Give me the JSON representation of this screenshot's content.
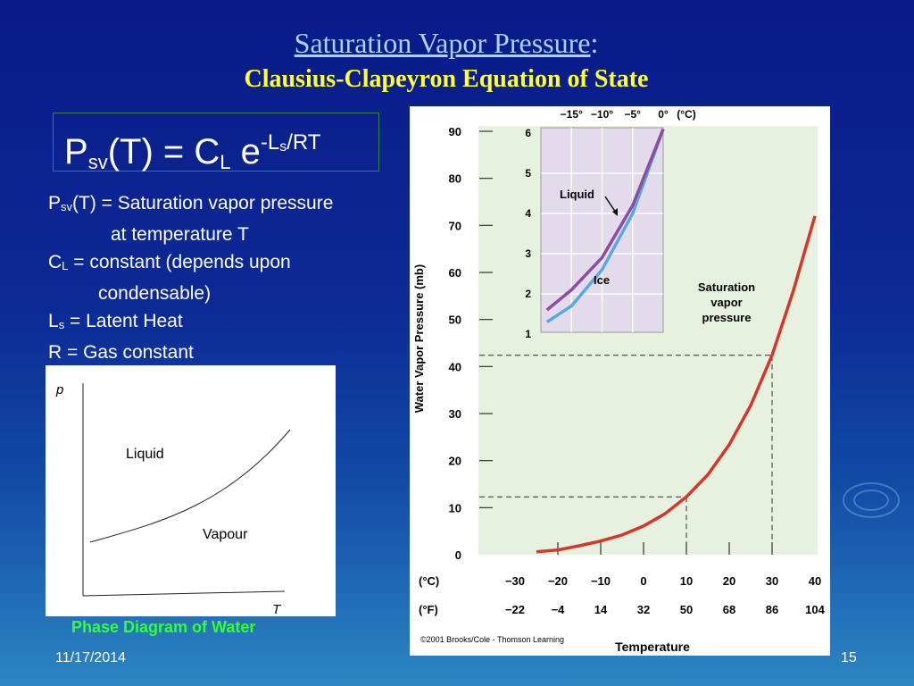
{
  "slide": {
    "title": "Saturation Vapor Pressure",
    "title_colon": ":",
    "subtitle": "Clausius-Clapeyron Equation of State",
    "date": "11/17/2014",
    "page": "15"
  },
  "equation": {
    "p": "P",
    "sv": "sv",
    "t": "(T) = C",
    "l": "L",
    "e": " e",
    "exp1": "-L",
    "exp2": "s",
    "exp3": "/RT"
  },
  "definitions": {
    "d1_p": "P",
    "d1_sub": "sv",
    "d1_text": "(T) = Saturation vapor pressure",
    "d1_cont": "at temperature T",
    "d2_c": "C",
    "d2_sub": "L",
    "d2_text": " = constant (depends upon",
    "d2_cont": "condensable)",
    "d3_l": "L",
    "d3_sub": "s",
    "d3_text": " = Latent Heat",
    "d4": "R = Gas constant"
  },
  "phase_diagram": {
    "caption": "Phase Diagram of Water",
    "y_label": "p",
    "x_label": "T",
    "liquid_label": "Liquid",
    "vapour_label": "Vapour"
  },
  "chart_data": {
    "type": "line",
    "ylabel": "Water Vapor Pressure (mb)",
    "xlabel": "Temperature",
    "credit": "©2001 Brooks/Cole - Thomson Learning",
    "curve_label": [
      "Saturation",
      "vapor",
      "pressure"
    ],
    "x_unit_c": "(°C)",
    "x_unit_f": "(°F)",
    "xticks_c": [
      "−30",
      "−20",
      "−10",
      "0",
      "10",
      "20",
      "30",
      "40"
    ],
    "xticks_f": [
      "−22",
      "−4",
      "14",
      "32",
      "50",
      "68",
      "86",
      "104"
    ],
    "xticks_c_values": [
      -30,
      -20,
      -10,
      0,
      10,
      20,
      30,
      40
    ],
    "yticks": [
      "0",
      "10",
      "20",
      "30",
      "40",
      "50",
      "60",
      "70",
      "80",
      "90"
    ],
    "xlim": [
      -30,
      40
    ],
    "ylim": [
      0,
      90
    ],
    "series": [
      {
        "x": [
          -25,
          -20,
          -15,
          -10,
          -5,
          0,
          5,
          10,
          15,
          20,
          25,
          30,
          35,
          40
        ],
        "y": [
          0.6,
          1.0,
          1.9,
          2.9,
          4.2,
          6.1,
          8.7,
          12.3,
          17.0,
          23.4,
          31.7,
          42.4,
          56.2,
          72.0
        ]
      }
    ],
    "reference_points": [
      {
        "x": 10,
        "y": 12.3
      },
      {
        "x": 30,
        "y": 42.4
      }
    ],
    "inset": {
      "xticks_c": [
        "−15°",
        "−10°",
        "−5°",
        "0°"
      ],
      "x_unit": "(°C)",
      "yticks": [
        "1",
        "2",
        "3",
        "4",
        "5",
        "6"
      ],
      "xlim": [
        -20,
        0
      ],
      "ylim": [
        1,
        6
      ],
      "liquid_label": "Liquid",
      "ice_label": "Ice",
      "liquid": {
        "x": [
          -19,
          -15,
          -10,
          -5,
          0
        ],
        "y": [
          1.6,
          2.1,
          2.9,
          4.2,
          6.1
        ]
      },
      "ice": {
        "x": [
          -19,
          -15,
          -10,
          -5,
          0
        ],
        "y": [
          1.3,
          1.7,
          2.6,
          4.0,
          6.1
        ]
      }
    }
  }
}
